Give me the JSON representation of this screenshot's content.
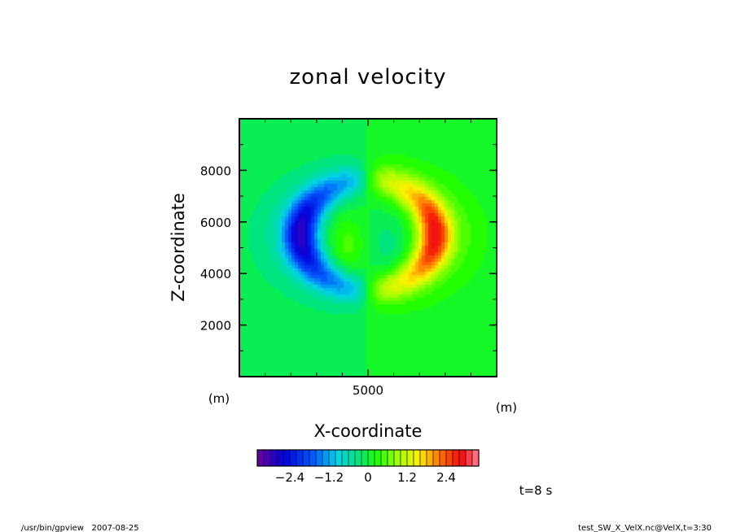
{
  "chart_data": {
    "type": "heatmap",
    "title": "zonal velocity",
    "xlabel": "X-coordinate",
    "ylabel": "Z-coordinate",
    "x_unit": "(m)",
    "y_unit": "(m)",
    "xlim": [
      0,
      10000
    ],
    "ylim": [
      0,
      10000
    ],
    "x_ticks": [
      5000
    ],
    "y_ticks": [
      2000,
      4000,
      6000,
      8000
    ],
    "colorbar": {
      "range": [
        -3.4,
        3.4
      ],
      "ticks": [
        -2.4,
        -1.2,
        0,
        1.2,
        2.4
      ],
      "tick_labels": [
        "−2.4",
        "−1.2",
        "0",
        "1.2",
        "2.4"
      ],
      "colormap": "rainbow (purple-blue-cyan-green-yellow-red-pink)",
      "levels": 34
    },
    "features": [
      {
        "name": "negative crescent",
        "x_center": 2500,
        "z_center": 5500,
        "peak_value": -2.6
      },
      {
        "name": "positive crescent",
        "x_center": 7500,
        "z_center": 5500,
        "peak_value": 2.6
      },
      {
        "name": "inner left lobe",
        "x_center": 4200,
        "z_center": 5100,
        "peak_value": 0.5
      },
      {
        "name": "inner right lobe",
        "x_center": 5800,
        "z_center": 5100,
        "peak_value": -0.3
      }
    ],
    "time_label": "t=8 s"
  },
  "footer": {
    "left": "/usr/bin/gpview   2007-08-25",
    "right": "test_SW_X_VelX.nc@VelX,t=3:30"
  },
  "colors": {
    "background": "#00ff00",
    "negative_peak": "#0050ff",
    "positive_peak": "#ff6000"
  }
}
